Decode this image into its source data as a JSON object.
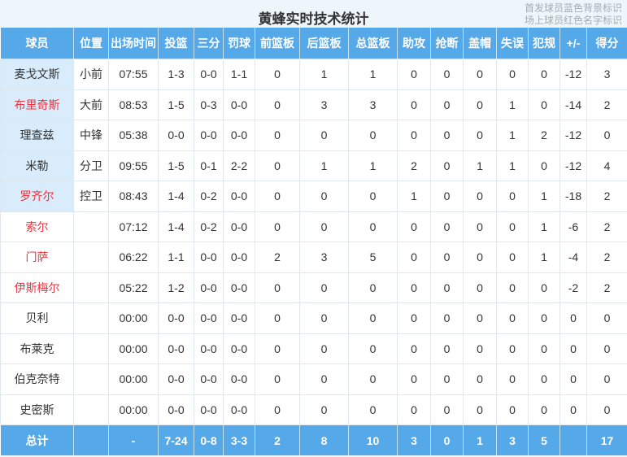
{
  "title": "黄蜂实时技术统计",
  "legend": {
    "line1": "首发球员蓝色背景标识",
    "line2": "场上球员红色名字标识"
  },
  "colors": {
    "header_bg": "#56a9e8",
    "starter_cell_bg": "#d9ecfb",
    "oncourt_name_red": "#e8353f",
    "page_bg": "#eef6fc",
    "cell_border": "#dfe8ef"
  },
  "table": {
    "columns": [
      {
        "key": "player",
        "label": "球员"
      },
      {
        "key": "position",
        "label": "位置"
      },
      {
        "key": "minutes",
        "label": "出场时间"
      },
      {
        "key": "fg",
        "label": "投篮"
      },
      {
        "key": "three-point",
        "label": "三分"
      },
      {
        "key": "free-throw",
        "label": "罚球"
      },
      {
        "key": "off-rebound",
        "label": "前篮板"
      },
      {
        "key": "def-rebound",
        "label": "后篮板"
      },
      {
        "key": "total-rebound",
        "label": "总篮板"
      },
      {
        "key": "assists",
        "label": "助攻"
      },
      {
        "key": "steals",
        "label": "抢断"
      },
      {
        "key": "blocks",
        "label": "盖帽"
      },
      {
        "key": "turnovers",
        "label": "失误"
      },
      {
        "key": "fouls",
        "label": "犯规"
      },
      {
        "key": "plus-minus",
        "label": "+/-"
      },
      {
        "key": "points",
        "label": "得分"
      }
    ],
    "rows": [
      {
        "name": "麦戈文斯",
        "starter": true,
        "oncourt": false,
        "cells": [
          "小前",
          "07:55",
          "1-3",
          "0-0",
          "1-1",
          "0",
          "1",
          "1",
          "0",
          "0",
          "0",
          "0",
          "0",
          "-12",
          "3"
        ]
      },
      {
        "name": "布里奇斯",
        "starter": true,
        "oncourt": true,
        "cells": [
          "大前",
          "08:53",
          "1-5",
          "0-3",
          "0-0",
          "0",
          "3",
          "3",
          "0",
          "0",
          "0",
          "1",
          "0",
          "-14",
          "2"
        ]
      },
      {
        "name": "理查兹",
        "starter": true,
        "oncourt": false,
        "cells": [
          "中锋",
          "05:38",
          "0-0",
          "0-0",
          "0-0",
          "0",
          "0",
          "0",
          "0",
          "0",
          "0",
          "1",
          "2",
          "-12",
          "0"
        ]
      },
      {
        "name": "米勒",
        "starter": true,
        "oncourt": false,
        "cells": [
          "分卫",
          "09:55",
          "1-5",
          "0-1",
          "2-2",
          "0",
          "1",
          "1",
          "2",
          "0",
          "1",
          "1",
          "0",
          "-12",
          "4"
        ]
      },
      {
        "name": "罗齐尔",
        "starter": true,
        "oncourt": true,
        "cells": [
          "控卫",
          "08:43",
          "1-4",
          "0-2",
          "0-0",
          "0",
          "0",
          "0",
          "1",
          "0",
          "0",
          "0",
          "1",
          "-18",
          "2"
        ]
      },
      {
        "name": "索尔",
        "starter": false,
        "oncourt": true,
        "cells": [
          "",
          "07:12",
          "1-4",
          "0-2",
          "0-0",
          "0",
          "0",
          "0",
          "0",
          "0",
          "0",
          "0",
          "1",
          "-6",
          "2"
        ]
      },
      {
        "name": "门萨",
        "starter": false,
        "oncourt": true,
        "cells": [
          "",
          "06:22",
          "1-1",
          "0-0",
          "0-0",
          "2",
          "3",
          "5",
          "0",
          "0",
          "0",
          "0",
          "1",
          "-4",
          "2"
        ]
      },
      {
        "name": "伊斯梅尔",
        "starter": false,
        "oncourt": true,
        "cells": [
          "",
          "05:22",
          "1-2",
          "0-0",
          "0-0",
          "0",
          "0",
          "0",
          "0",
          "0",
          "0",
          "0",
          "0",
          "-2",
          "2"
        ]
      },
      {
        "name": "贝利",
        "starter": false,
        "oncourt": false,
        "cells": [
          "",
          "00:00",
          "0-0",
          "0-0",
          "0-0",
          "0",
          "0",
          "0",
          "0",
          "0",
          "0",
          "0",
          "0",
          "0",
          "0"
        ]
      },
      {
        "name": "布莱克",
        "starter": false,
        "oncourt": false,
        "cells": [
          "",
          "00:00",
          "0-0",
          "0-0",
          "0-0",
          "0",
          "0",
          "0",
          "0",
          "0",
          "0",
          "0",
          "0",
          "0",
          "0"
        ]
      },
      {
        "name": "伯克奈特",
        "starter": false,
        "oncourt": false,
        "cells": [
          "",
          "00:00",
          "0-0",
          "0-0",
          "0-0",
          "0",
          "0",
          "0",
          "0",
          "0",
          "0",
          "0",
          "0",
          "0",
          "0"
        ]
      },
      {
        "name": "史密斯",
        "starter": false,
        "oncourt": false,
        "cells": [
          "",
          "00:00",
          "0-0",
          "0-0",
          "0-0",
          "0",
          "0",
          "0",
          "0",
          "0",
          "0",
          "0",
          "0",
          "0",
          "0"
        ]
      }
    ],
    "total": {
      "label": "总计",
      "cells": [
        "",
        "-",
        "7-24",
        "0-8",
        "3-3",
        "2",
        "8",
        "10",
        "3",
        "0",
        "1",
        "3",
        "5",
        "",
        "17"
      ]
    }
  }
}
